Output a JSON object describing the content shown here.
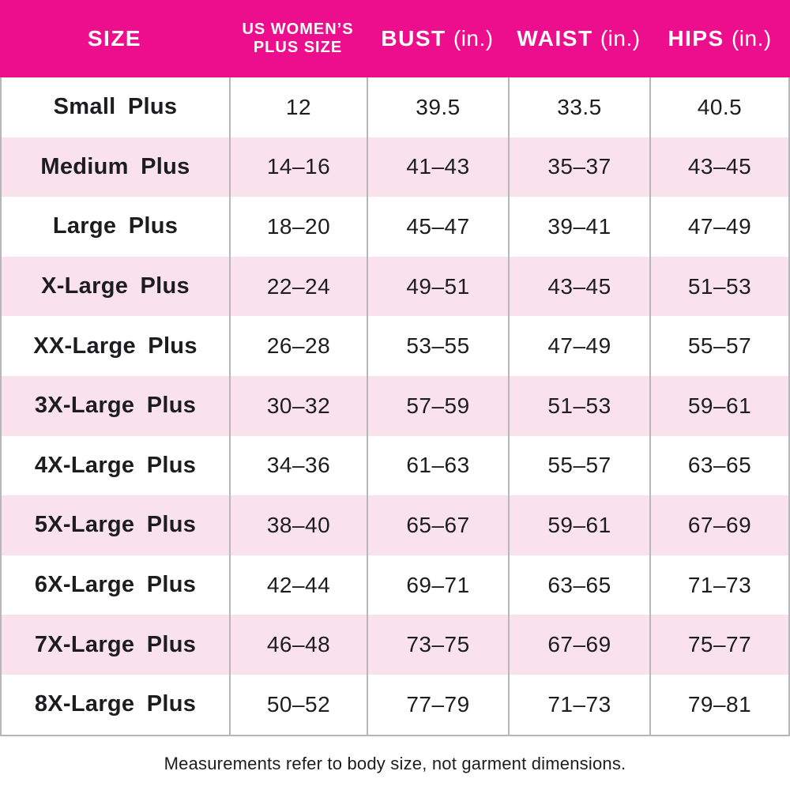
{
  "colors": {
    "header_bg": "#EC0E8C",
    "row_alt_bg": "#FAE2ED",
    "border": "#b5b7b8",
    "header_text": "#ffffff",
    "body_text": "#1d1d1f"
  },
  "header": {
    "col_size": "SIZE",
    "col_plus_line1": "US WOMEN’S",
    "col_plus_line2": "PLUS SIZE",
    "col_bust": "BUST",
    "col_bust_unit": "(in.)",
    "col_waist": "WAIST",
    "col_waist_unit": "(in.)",
    "col_hips": "HIPS",
    "col_hips_unit": "(in.)"
  },
  "footer": {
    "note": "Measurements refer to body size, not garment dimensions."
  },
  "chart_data": {
    "type": "table",
    "title": "US Women's Plus Size measurement chart",
    "columns": [
      "SIZE",
      "US WOMEN’S PLUS SIZE",
      "BUST (in.)",
      "WAIST (in.)",
      "HIPS (in.)"
    ],
    "rows": [
      {
        "size": "Small Plus",
        "plus_size": "12",
        "bust": "39.5",
        "waist": "33.5",
        "hips": "40.5"
      },
      {
        "size": "Medium Plus",
        "plus_size": "14–16",
        "bust": "41–43",
        "waist": "35–37",
        "hips": "43–45"
      },
      {
        "size": "Large Plus",
        "plus_size": "18–20",
        "bust": "45–47",
        "waist": "39–41",
        "hips": "47–49"
      },
      {
        "size": "X-Large Plus",
        "plus_size": "22–24",
        "bust": "49–51",
        "waist": "43–45",
        "hips": "51–53"
      },
      {
        "size": "XX-Large Plus",
        "plus_size": "26–28",
        "bust": "53–55",
        "waist": "47–49",
        "hips": "55–57"
      },
      {
        "size": "3X-Large Plus",
        "plus_size": "30–32",
        "bust": "57–59",
        "waist": "51–53",
        "hips": "59–61"
      },
      {
        "size": "4X-Large Plus",
        "plus_size": "34–36",
        "bust": "61–63",
        "waist": "55–57",
        "hips": "63–65"
      },
      {
        "size": "5X-Large Plus",
        "plus_size": "38–40",
        "bust": "65–67",
        "waist": "59–61",
        "hips": "67–69"
      },
      {
        "size": "6X-Large Plus",
        "plus_size": "42–44",
        "bust": "69–71",
        "waist": "63–65",
        "hips": "71–73"
      },
      {
        "size": "7X-Large Plus",
        "plus_size": "46–48",
        "bust": "73–75",
        "waist": "67–69",
        "hips": "75–77"
      },
      {
        "size": "8X-Large Plus",
        "plus_size": "50–52",
        "bust": "77–79",
        "waist": "71–73",
        "hips": "79–81"
      }
    ]
  }
}
